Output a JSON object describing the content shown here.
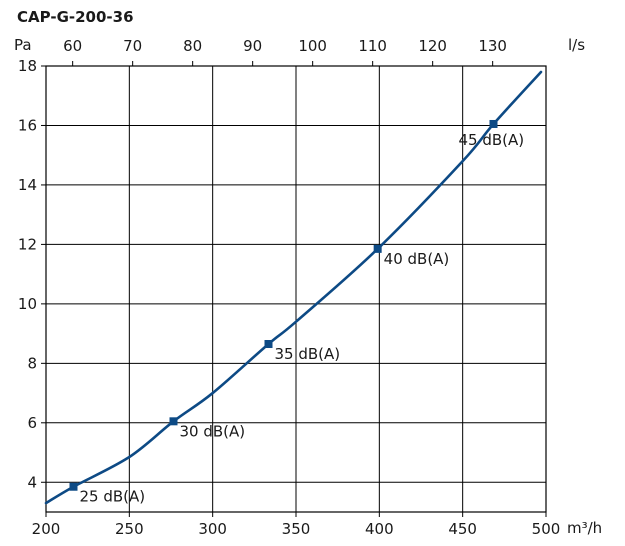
{
  "chart_data": {
    "type": "line",
    "title": "CAP-G-200-36",
    "ylabel": "Pa",
    "xlabel": "m³/h",
    "x2label": "l/s",
    "xlim": [
      200,
      500
    ],
    "ylim": [
      3,
      18
    ],
    "x2_ticks": [
      60,
      70,
      80,
      90,
      100,
      110,
      120,
      130
    ],
    "x_ticks": [
      200,
      250,
      300,
      350,
      400,
      450,
      500
    ],
    "y_ticks": [
      4,
      6,
      8,
      10,
      12,
      14,
      16,
      18
    ],
    "grid": true,
    "series": [
      {
        "x": [
          200,
          216.5,
          250,
          276.5,
          300,
          333.5,
          350,
          399,
          450,
          468.5,
          497
        ],
        "y": [
          3.3,
          3.85,
          4.85,
          6.05,
          7.0,
          8.65,
          9.4,
          11.85,
          14.8,
          16.05,
          17.8
        ]
      }
    ],
    "markers": [
      {
        "x": 216.5,
        "y": 3.85,
        "label": "25 dB(A)"
      },
      {
        "x": 276.5,
        "y": 6.05,
        "label": "30 dB(A)"
      },
      {
        "x": 333.5,
        "y": 8.65,
        "label": "35 dB(A)"
      },
      {
        "x": 399,
        "y": 11.85,
        "label": "40 dB(A)"
      },
      {
        "x": 468.5,
        "y": 16.05,
        "label": "45 dB(A)"
      }
    ],
    "colors": {
      "curve": "#0d4a85",
      "grid": "#000000",
      "text": "#1a1a1a"
    }
  }
}
